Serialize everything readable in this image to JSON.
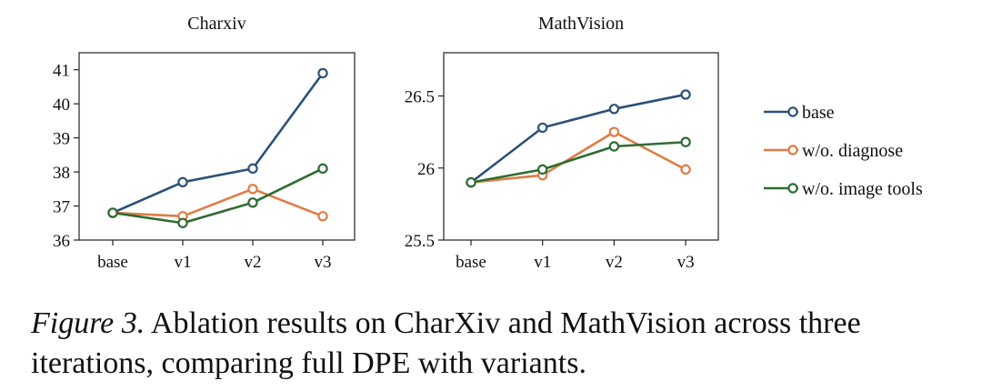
{
  "chart_data": [
    {
      "type": "line",
      "title": "Charxiv",
      "categories": [
        "base",
        "v1",
        "v2",
        "v3"
      ],
      "ylim": [
        36,
        41.5
      ],
      "yticks": [
        "36",
        "37",
        "38",
        "39",
        "40",
        "41"
      ],
      "series": [
        {
          "name": "base",
          "color": "#2c5178",
          "values": [
            36.8,
            37.7,
            38.1,
            40.9
          ]
        },
        {
          "name": "w/o. diagnose",
          "color": "#e07b45",
          "values": [
            36.8,
            36.7,
            37.5,
            36.7
          ]
        },
        {
          "name": "w/o. image tools",
          "color": "#2e6b32",
          "values": [
            36.8,
            36.5,
            37.1,
            38.1
          ]
        }
      ]
    },
    {
      "type": "line",
      "title": "MathVision",
      "categories": [
        "base",
        "v1",
        "v2",
        "v3"
      ],
      "ylim": [
        25.5,
        26.8
      ],
      "yticks": [
        "25.5",
        "26",
        "26.5"
      ],
      "series": [
        {
          "name": "base",
          "color": "#2c5178",
          "values": [
            25.9,
            26.28,
            26.41,
            26.51
          ]
        },
        {
          "name": "w/o. diagnose",
          "color": "#e07b45",
          "values": [
            25.9,
            25.95,
            26.25,
            25.99
          ]
        },
        {
          "name": "w/o. image tools",
          "color": "#2e6b32",
          "values": [
            25.9,
            25.99,
            26.15,
            26.18
          ]
        }
      ]
    }
  ],
  "legend": [
    {
      "label": "base",
      "color": "#2c5178"
    },
    {
      "label": "w/o. diagnose",
      "color": "#e07b45"
    },
    {
      "label": "w/o. image tools",
      "color": "#2e6b32"
    }
  ],
  "caption": {
    "label": "Figure 3.",
    "text": " Ablation results on CharXiv and MathVision across three iterations, comparing full DPE with variants."
  }
}
